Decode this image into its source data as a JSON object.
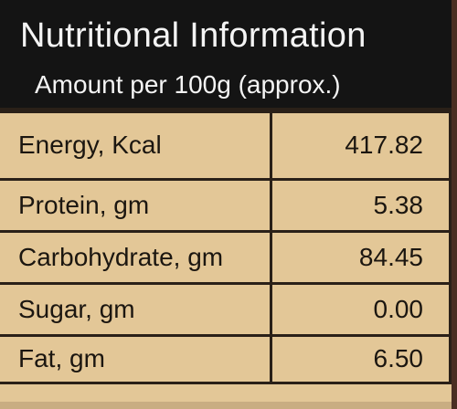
{
  "header": {
    "title": "Nutritional Information",
    "subtitle": "Amount per 100g (approx.)"
  },
  "rows": [
    {
      "label": "Energy, Kcal",
      "value": "417.82"
    },
    {
      "label": "Protein, gm",
      "value": "5.38"
    },
    {
      "label": "Carbohydrate, gm",
      "value": "84.45"
    },
    {
      "label": "Sugar, gm",
      "value": "0.00"
    },
    {
      "label": "Fat, gm",
      "value": "6.50"
    }
  ],
  "colors": {
    "header_background": "#141414",
    "table_background": "#e3c797",
    "border": "#2a2018"
  }
}
